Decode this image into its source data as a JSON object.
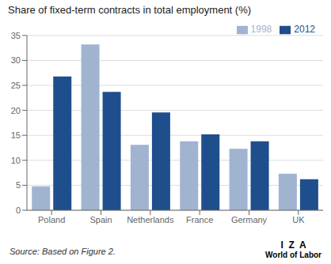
{
  "chart_data": {
    "type": "bar",
    "title": "Share of fixed-term contracts in total employment (%)",
    "categories": [
      "Poland",
      "Spain",
      "Netherlands",
      "France",
      "Germany",
      "UK"
    ],
    "series": [
      {
        "name": "1998",
        "color": "#a0b4d0",
        "values": [
          4.8,
          33.2,
          13.1,
          13.8,
          12.3,
          7.3
        ]
      },
      {
        "name": "2012",
        "color": "#1f4e8c",
        "values": [
          26.8,
          23.7,
          19.6,
          15.2,
          13.8,
          6.2
        ]
      }
    ],
    "ylim": [
      0,
      35
    ],
    "yticks": [
      0,
      5,
      10,
      15,
      20,
      25,
      30,
      35
    ],
    "grid": true,
    "legend": "upper right",
    "annotations": [
      "Source: Based on Figure 2.",
      "I  Z  A",
      "World of Labor"
    ]
  }
}
